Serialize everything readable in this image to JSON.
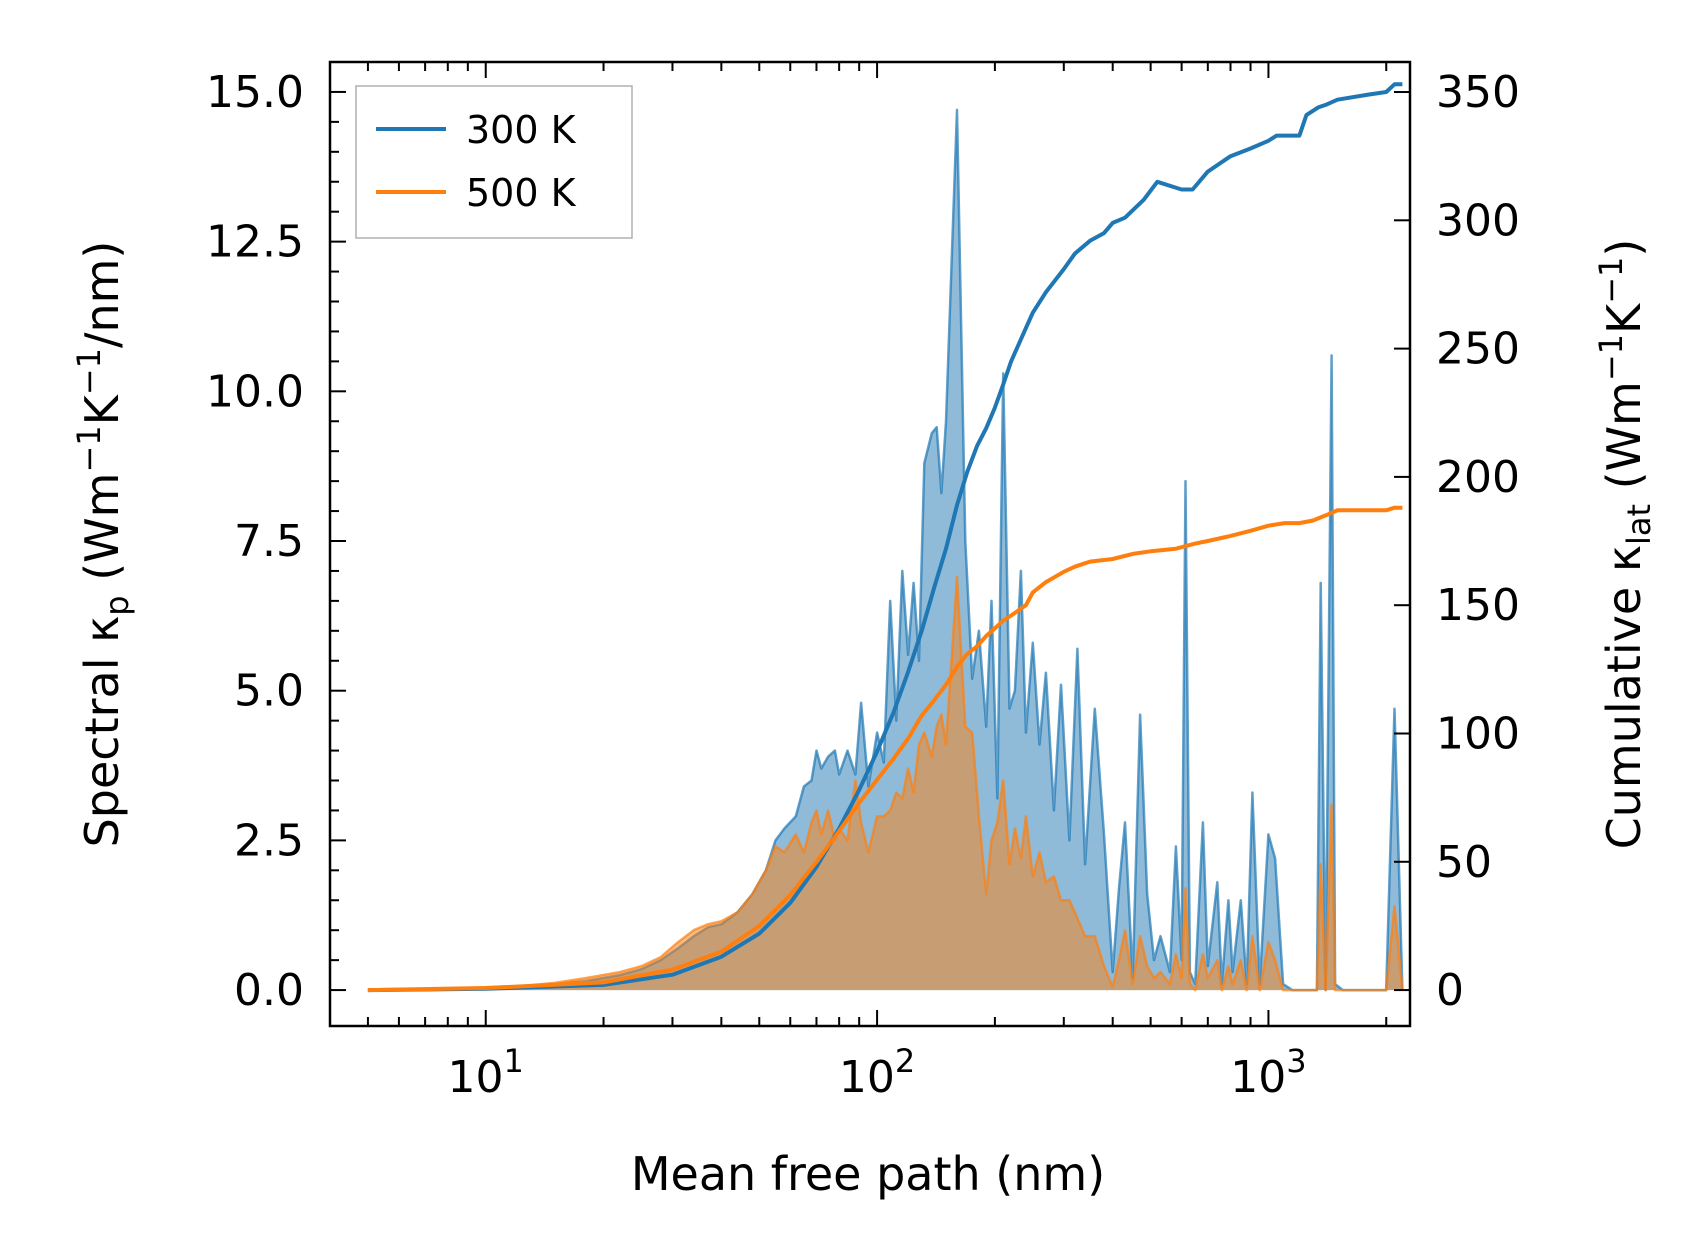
{
  "chart_data": {
    "type": "line",
    "x_scale": "log",
    "xlabel": "Mean free path (nm)",
    "ylabel_left": {
      "prefix": "Spectral ",
      "symbol": "κ",
      "sub": "p",
      "unit_open": " (Wm",
      "exp1": "−1",
      "mid": "K",
      "exp2": "−1",
      "unit_close": "/nm)"
    },
    "ylabel_right": {
      "prefix": "Cumulative ",
      "symbol": "κ",
      "sub": "lat",
      "unit_open": " (Wm",
      "exp1": "−1",
      "mid": "K",
      "exp2": "−1",
      "unit_close": ")"
    },
    "xlim": [
      4,
      2300
    ],
    "ylim_left": [
      -0.6,
      15.5
    ],
    "ylim_right": [
      -14,
      361.7
    ],
    "x_ticks": [
      {
        "value": 10,
        "base": "10",
        "exp": "1"
      },
      {
        "value": 100,
        "base": "10",
        "exp": "2"
      },
      {
        "value": 1000,
        "base": "10",
        "exp": "3"
      }
    ],
    "y_ticks_left": [
      "0.0",
      "2.5",
      "5.0",
      "7.5",
      "10.0",
      "12.5",
      "15.0"
    ],
    "y_ticks_right": [
      "0",
      "50",
      "100",
      "150",
      "200",
      "250",
      "300",
      "350"
    ],
    "legend": [
      {
        "label": "300 K",
        "color": "#1f77b4"
      },
      {
        "label": "500 K",
        "color": "#ff7f0e"
      }
    ],
    "legend_position": "upper-left",
    "series": [
      {
        "name": "300 K",
        "color": "#1f77b4",
        "spectral_axis": "left",
        "spectral": [
          [
            5,
            0
          ],
          [
            8,
            0.02
          ],
          [
            12,
            0.05
          ],
          [
            15,
            0.1
          ],
          [
            18,
            0.15
          ],
          [
            22,
            0.25
          ],
          [
            25,
            0.35
          ],
          [
            28,
            0.5
          ],
          [
            31,
            0.7
          ],
          [
            34,
            0.9
          ],
          [
            37,
            1.05
          ],
          [
            40,
            1.1
          ],
          [
            44,
            1.3
          ],
          [
            48,
            1.6
          ],
          [
            52,
            2.0
          ],
          [
            55,
            2.5
          ],
          [
            58,
            2.7
          ],
          [
            62,
            2.9
          ],
          [
            65,
            3.4
          ],
          [
            68,
            3.5
          ],
          [
            70,
            4.0
          ],
          [
            72,
            3.7
          ],
          [
            75,
            3.9
          ],
          [
            78,
            4.0
          ],
          [
            80,
            3.6
          ],
          [
            84,
            4.0
          ],
          [
            88,
            3.6
          ],
          [
            91,
            4.8
          ],
          [
            95,
            3.4
          ],
          [
            100,
            4.3
          ],
          [
            104,
            3.8
          ],
          [
            108,
            6.5
          ],
          [
            112,
            4.5
          ],
          [
            116,
            7.0
          ],
          [
            120,
            5.6
          ],
          [
            124,
            6.8
          ],
          [
            128,
            5.5
          ],
          [
            132,
            8.8
          ],
          [
            138,
            9.3
          ],
          [
            142,
            9.4
          ],
          [
            146,
            8.3
          ],
          [
            150,
            9.5
          ],
          [
            160,
            14.7
          ],
          [
            168,
            7.5
          ],
          [
            175,
            5.2
          ],
          [
            182,
            6.0
          ],
          [
            190,
            4.4
          ],
          [
            196,
            6.5
          ],
          [
            203,
            3.2
          ],
          [
            210,
            10.3
          ],
          [
            218,
            4.7
          ],
          [
            225,
            5.0
          ],
          [
            233,
            7.0
          ],
          [
            240,
            4.3
          ],
          [
            250,
            5.8
          ],
          [
            260,
            4.1
          ],
          [
            270,
            5.3
          ],
          [
            283,
            3.0
          ],
          [
            295,
            5.1
          ],
          [
            310,
            2.5
          ],
          [
            325,
            5.7
          ],
          [
            340,
            2.1
          ],
          [
            360,
            4.7
          ],
          [
            380,
            2.6
          ],
          [
            400,
            0.3
          ],
          [
            415,
            1.7
          ],
          [
            430,
            2.8
          ],
          [
            450,
            0.2
          ],
          [
            470,
            4.6
          ],
          [
            490,
            1.6
          ],
          [
            510,
            0.5
          ],
          [
            530,
            0.9
          ],
          [
            560,
            0.3
          ],
          [
            580,
            2.4
          ],
          [
            600,
            0.5
          ],
          [
            614,
            8.5
          ],
          [
            630,
            0.3
          ],
          [
            650,
            0.1
          ],
          [
            680,
            2.8
          ],
          [
            700,
            0.4
          ],
          [
            740,
            1.8
          ],
          [
            760,
            0.1
          ],
          [
            790,
            1.5
          ],
          [
            810,
            0.3
          ],
          [
            850,
            1.5
          ],
          [
            880,
            0.1
          ],
          [
            910,
            3.3
          ],
          [
            950,
            0.1
          ],
          [
            1000,
            2.6
          ],
          [
            1040,
            2.2
          ],
          [
            1090,
            0.1
          ],
          [
            1150,
            0
          ],
          [
            1330,
            0
          ],
          [
            1360,
            6.8
          ],
          [
            1400,
            0
          ],
          [
            1450,
            10.6
          ],
          [
            1480,
            0.1
          ],
          [
            1550,
            0
          ],
          [
            2000,
            0
          ],
          [
            2100,
            4.7
          ],
          [
            2200,
            0
          ]
        ],
        "cumulative": [
          [
            5,
            0
          ],
          [
            10,
            0.5
          ],
          [
            20,
            2
          ],
          [
            30,
            6
          ],
          [
            40,
            13
          ],
          [
            50,
            22
          ],
          [
            60,
            34
          ],
          [
            70,
            48
          ],
          [
            80,
            63
          ],
          [
            90,
            78
          ],
          [
            100,
            93
          ],
          [
            110,
            108
          ],
          [
            120,
            124
          ],
          [
            130,
            140
          ],
          [
            140,
            157
          ],
          [
            150,
            172
          ],
          [
            160,
            189
          ],
          [
            170,
            202
          ],
          [
            180,
            212
          ],
          [
            190,
            219
          ],
          [
            200,
            227
          ],
          [
            210,
            236
          ],
          [
            220,
            245
          ],
          [
            240,
            258
          ],
          [
            250,
            264
          ],
          [
            270,
            272
          ],
          [
            300,
            281
          ],
          [
            320,
            287
          ],
          [
            350,
            292
          ],
          [
            380,
            295
          ],
          [
            400,
            299
          ],
          [
            430,
            301
          ],
          [
            480,
            308
          ],
          [
            520,
            315
          ],
          [
            600,
            312
          ],
          [
            640,
            312
          ],
          [
            700,
            319
          ],
          [
            800,
            325
          ],
          [
            900,
            328
          ],
          [
            1000,
            331
          ],
          [
            1050,
            333
          ],
          [
            1200,
            333
          ],
          [
            1250,
            341
          ],
          [
            1340,
            344
          ],
          [
            1400,
            345
          ],
          [
            1500,
            347
          ],
          [
            1800,
            349
          ],
          [
            2000,
            350
          ],
          [
            2100,
            353
          ],
          [
            2200,
            353
          ]
        ]
      },
      {
        "name": "500 K",
        "color": "#ff7f0e",
        "spectral_axis": "left",
        "spectral": [
          [
            5,
            0
          ],
          [
            8,
            0.02
          ],
          [
            12,
            0.06
          ],
          [
            15,
            0.12
          ],
          [
            18,
            0.2
          ],
          [
            22,
            0.3
          ],
          [
            25,
            0.4
          ],
          [
            28,
            0.55
          ],
          [
            31,
            0.8
          ],
          [
            34,
            1.0
          ],
          [
            37,
            1.1
          ],
          [
            40,
            1.15
          ],
          [
            44,
            1.3
          ],
          [
            48,
            1.6
          ],
          [
            52,
            2.0
          ],
          [
            55,
            2.4
          ],
          [
            58,
            2.3
          ],
          [
            62,
            2.6
          ],
          [
            65,
            2.3
          ],
          [
            68,
            2.8
          ],
          [
            70,
            3.0
          ],
          [
            72,
            2.6
          ],
          [
            75,
            3.0
          ],
          [
            78,
            2.5
          ],
          [
            80,
            2.7
          ],
          [
            84,
            2.5
          ],
          [
            88,
            3.5
          ],
          [
            91,
            2.8
          ],
          [
            95,
            2.3
          ],
          [
            100,
            2.9
          ],
          [
            104,
            2.9
          ],
          [
            108,
            3.0
          ],
          [
            112,
            3.3
          ],
          [
            116,
            3.2
          ],
          [
            120,
            3.7
          ],
          [
            124,
            3.3
          ],
          [
            128,
            4.1
          ],
          [
            132,
            4.3
          ],
          [
            138,
            3.9
          ],
          [
            142,
            4.4
          ],
          [
            146,
            4.6
          ],
          [
            150,
            4.1
          ],
          [
            160,
            6.9
          ],
          [
            168,
            4.4
          ],
          [
            175,
            4.3
          ],
          [
            182,
            2.9
          ],
          [
            190,
            1.6
          ],
          [
            196,
            2.5
          ],
          [
            203,
            2.8
          ],
          [
            210,
            3.5
          ],
          [
            218,
            2.1
          ],
          [
            225,
            2.7
          ],
          [
            233,
            2.2
          ],
          [
            240,
            2.9
          ],
          [
            250,
            1.9
          ],
          [
            260,
            2.3
          ],
          [
            270,
            1.8
          ],
          [
            283,
            1.9
          ],
          [
            295,
            1.5
          ],
          [
            310,
            1.5
          ],
          [
            325,
            1.2
          ],
          [
            340,
            0.9
          ],
          [
            360,
            0.9
          ],
          [
            380,
            0.4
          ],
          [
            400,
            0.05
          ],
          [
            415,
            0.5
          ],
          [
            430,
            1.0
          ],
          [
            450,
            0.1
          ],
          [
            470,
            0.9
          ],
          [
            490,
            0.4
          ],
          [
            510,
            0.2
          ],
          [
            530,
            0.3
          ],
          [
            560,
            0.1
          ],
          [
            580,
            0.6
          ],
          [
            600,
            0.2
          ],
          [
            614,
            1.7
          ],
          [
            630,
            0.1
          ],
          [
            650,
            0
          ],
          [
            680,
            0.6
          ],
          [
            700,
            0.2
          ],
          [
            740,
            0.5
          ],
          [
            760,
            0
          ],
          [
            790,
            0.4
          ],
          [
            810,
            0.1
          ],
          [
            850,
            0.5
          ],
          [
            880,
            0
          ],
          [
            910,
            0.9
          ],
          [
            950,
            0
          ],
          [
            1000,
            0.8
          ],
          [
            1040,
            0.5
          ],
          [
            1090,
            0
          ],
          [
            1150,
            0
          ],
          [
            1330,
            0
          ],
          [
            1360,
            2.1
          ],
          [
            1400,
            0
          ],
          [
            1450,
            3.1
          ],
          [
            1480,
            0
          ],
          [
            1550,
            0
          ],
          [
            2000,
            0
          ],
          [
            2100,
            1.4
          ],
          [
            2200,
            0
          ]
        ],
        "cumulative": [
          [
            5,
            0
          ],
          [
            10,
            0.8
          ],
          [
            20,
            3
          ],
          [
            30,
            8
          ],
          [
            40,
            15
          ],
          [
            50,
            25
          ],
          [
            60,
            37
          ],
          [
            70,
            50
          ],
          [
            80,
            62
          ],
          [
            90,
            73
          ],
          [
            100,
            82
          ],
          [
            110,
            90
          ],
          [
            120,
            98
          ],
          [
            130,
            107
          ],
          [
            140,
            113
          ],
          [
            150,
            119
          ],
          [
            160,
            126
          ],
          [
            170,
            131
          ],
          [
            180,
            134
          ],
          [
            190,
            138
          ],
          [
            200,
            141
          ],
          [
            210,
            144
          ],
          [
            220,
            146
          ],
          [
            240,
            150
          ],
          [
            250,
            155
          ],
          [
            270,
            159
          ],
          [
            300,
            163
          ],
          [
            320,
            165
          ],
          [
            350,
            167
          ],
          [
            400,
            168
          ],
          [
            450,
            170
          ],
          [
            500,
            171
          ],
          [
            580,
            172
          ],
          [
            650,
            174
          ],
          [
            700,
            175
          ],
          [
            800,
            177
          ],
          [
            900,
            179
          ],
          [
            1000,
            181
          ],
          [
            1100,
            182
          ],
          [
            1200,
            182
          ],
          [
            1300,
            183
          ],
          [
            1400,
            185
          ],
          [
            1500,
            187
          ],
          [
            2000,
            187
          ],
          [
            2100,
            188
          ],
          [
            2200,
            188
          ]
        ]
      }
    ]
  }
}
